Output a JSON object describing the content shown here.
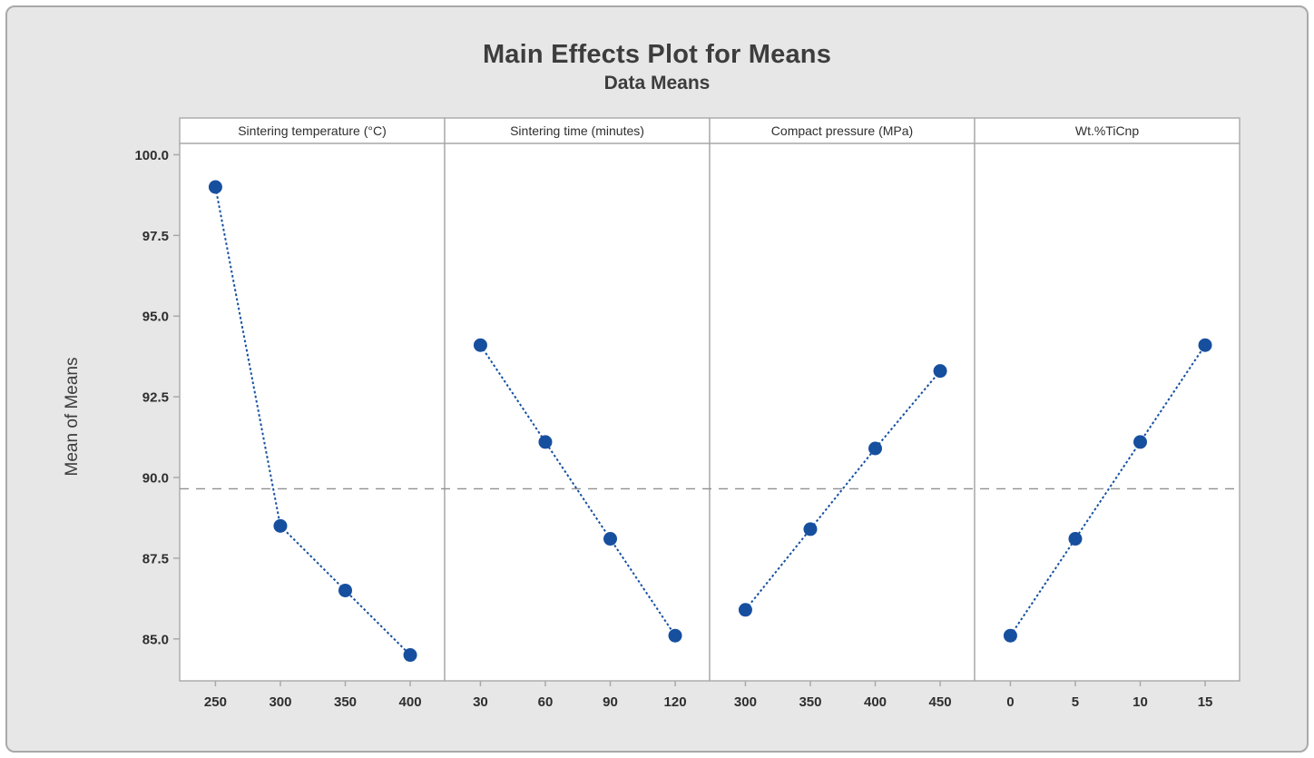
{
  "window": {
    "background": "#e7e7e7",
    "frame_border": "#a9a9a9"
  },
  "chart_data": {
    "type": "line",
    "title": "Main Effects Plot for Means",
    "subtitle": "Data Means",
    "ylabel": "Mean of Means",
    "xlabel": "",
    "grid": "off",
    "legend": "none",
    "y_ticks": [
      100.0,
      97.5,
      95.0,
      92.5,
      90.0,
      87.5,
      85.0
    ],
    "y_tick_labels": [
      "100.0",
      "97.5",
      "95.0",
      "92.5",
      "90.0",
      "87.5",
      "85.0"
    ],
    "ylim": [
      83.7,
      100.35
    ],
    "overall_mean_line": 89.65,
    "panels": [
      {
        "header": "Sintering temperature (°C)",
        "x_labels": [
          "250",
          "300",
          "350",
          "400"
        ],
        "x": [
          250,
          300,
          350,
          400
        ],
        "values": [
          99.0,
          88.5,
          86.5,
          84.5
        ]
      },
      {
        "header": "Sintering time (minutes)",
        "x_labels": [
          "30",
          "60",
          "90",
          "120"
        ],
        "x": [
          30,
          60,
          90,
          120
        ],
        "values": [
          94.1,
          91.1,
          88.1,
          85.1
        ]
      },
      {
        "header": "Compact pressure (MPa)",
        "x_labels": [
          "300",
          "350",
          "400",
          "450"
        ],
        "x": [
          300,
          350,
          400,
          450
        ],
        "values": [
          85.9,
          88.4,
          90.9,
          93.3
        ]
      },
      {
        "header": "Wt.%TiCnp",
        "x_labels": [
          "0",
          "5",
          "10",
          "15"
        ],
        "x": [
          0,
          5,
          10,
          15
        ],
        "values": [
          85.1,
          88.1,
          91.1,
          94.1
        ]
      }
    ],
    "colors": {
      "series": "#1550a0",
      "marker": "#174f9f",
      "mean_line": "#909090",
      "panel_border": "#a9a9a9",
      "panel_fill": "#ffffff",
      "text": "#2e2e2e",
      "title_text": "#3d3d3d"
    }
  }
}
